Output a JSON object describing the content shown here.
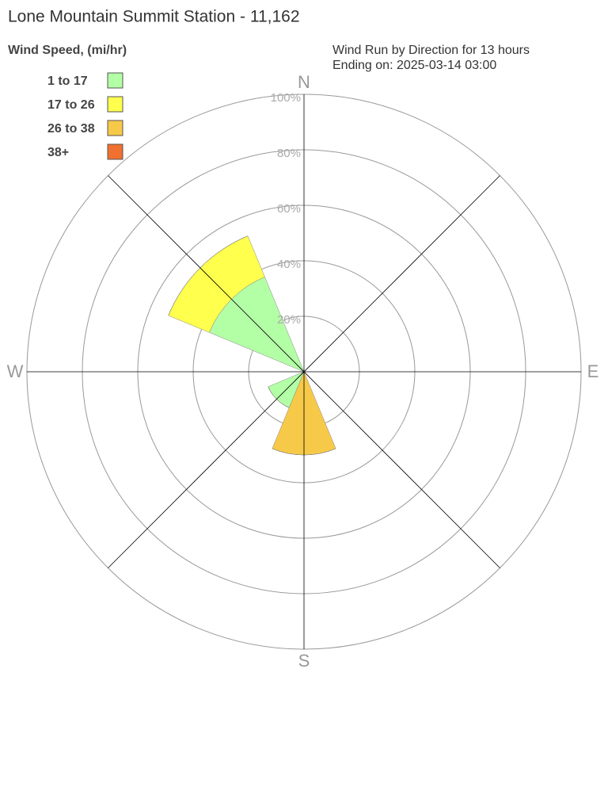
{
  "chart_data": {
    "type": "windrose",
    "title": "Lone Mountain Summit Station - 11,162",
    "subtitle": [
      "Wind Run by Direction for 13 hours",
      "Ending on: 2025-03-14 03:00"
    ],
    "legend_title": "Wind Speed, (mi/hr)",
    "categories": [
      "N",
      null,
      "E",
      null,
      "S",
      null,
      "W",
      null
    ],
    "series": [
      {
        "name": "1 to 17",
        "color": "#b3ffa6",
        "values": [
          0,
          0,
          0,
          0,
          0,
          14,
          0,
          37
        ]
      },
      {
        "name": "17 to 26",
        "color": "#ffff4d",
        "values": [
          0,
          0,
          0,
          0,
          0,
          0,
          0,
          16
        ]
      },
      {
        "name": "26 to 38",
        "color": "#f7c948",
        "values": [
          0,
          0,
          0,
          0,
          30,
          0,
          0,
          0
        ]
      },
      {
        "name": "38+",
        "color": "#f07030",
        "values": [
          0,
          0,
          0,
          0,
          0,
          0,
          0,
          0
        ]
      }
    ],
    "rlim": [
      0,
      100
    ],
    "rticks": [
      {
        "value": 20,
        "label": "20%"
      },
      {
        "value": 40,
        "label": "40%"
      },
      {
        "value": 60,
        "label": "60%"
      },
      {
        "value": 80,
        "label": "80%"
      },
      {
        "value": 100,
        "label": "100%"
      }
    ],
    "legend_position": "upper left"
  }
}
